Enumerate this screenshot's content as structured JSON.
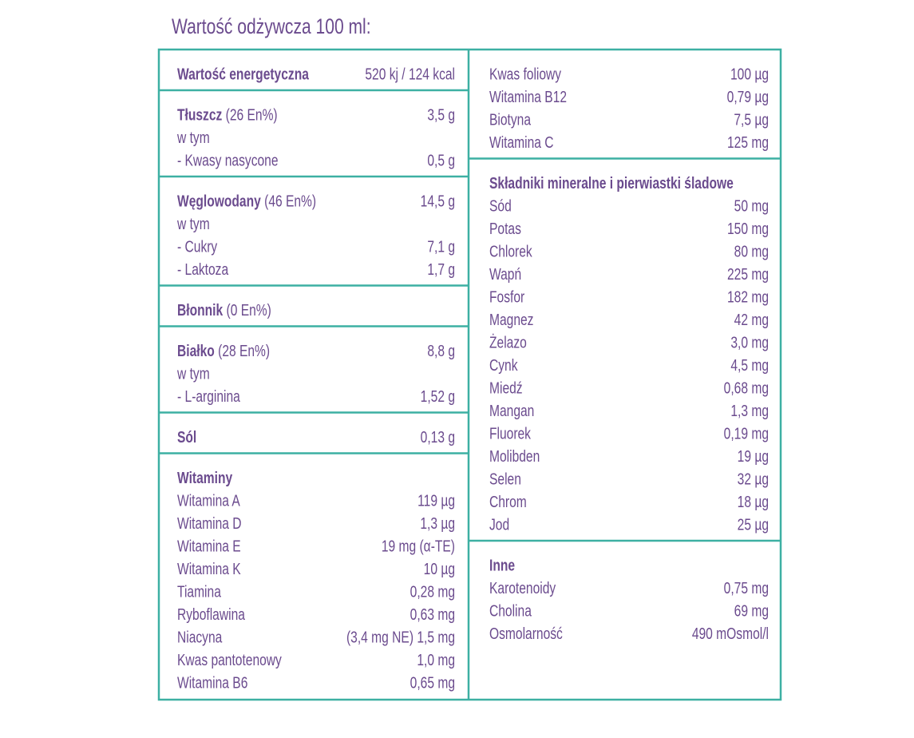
{
  "title": "Wartość odżywcza 100 ml:",
  "left_sections": [
    {
      "rows": [
        {
          "heading": "Wartość energetyczna",
          "value": "520 kj / 124 kcal"
        }
      ]
    },
    {
      "rows": [
        {
          "heading": "Tłuszcz",
          "note": "(26 En%)",
          "value": "3,5 g"
        },
        {
          "label": "w tym"
        },
        {
          "label": "- Kwasy nasycone",
          "value": "0,5 g"
        }
      ]
    },
    {
      "rows": [
        {
          "heading": "Węglowodany",
          "note": "(46 En%)",
          "value": "14,5 g"
        },
        {
          "label": "w tym"
        },
        {
          "label": "- Cukry",
          "value": "7,1 g"
        },
        {
          "label": "- Laktoza",
          "value": "1,7 g"
        }
      ]
    },
    {
      "rows": [
        {
          "heading": "Błonnik",
          "note": "(0 En%)"
        }
      ]
    },
    {
      "rows": [
        {
          "heading": "Białko",
          "note": "(28 En%)",
          "value": "8,8 g"
        },
        {
          "label": "w tym"
        },
        {
          "label": "- L-arginina",
          "value": "1,52 g"
        }
      ]
    },
    {
      "rows": [
        {
          "heading": "Sól",
          "value": "0,13 g"
        }
      ]
    },
    {
      "rows": [
        {
          "heading": "Witaminy"
        },
        {
          "label": "Witamina A",
          "value": "119 µg"
        },
        {
          "label": "Witamina D",
          "value": "1,3 µg"
        },
        {
          "label": "Witamina E",
          "value": "19 mg (α-TE)"
        },
        {
          "label": "Witamina K",
          "value": "10 µg"
        },
        {
          "label": "Tiamina",
          "value": "0,28 mg"
        },
        {
          "label": "Ryboflawina",
          "value": "0,63 mg"
        },
        {
          "label": "Niacyna",
          "value": "(3,4 mg NE) 1,5 mg"
        },
        {
          "label": "Kwas pantotenowy",
          "value": "1,0 mg"
        },
        {
          "label": "Witamina B6",
          "value": "0,65 mg"
        }
      ]
    }
  ],
  "right_sections": [
    {
      "rows": [
        {
          "label": "Kwas foliowy",
          "value": "100 µg"
        },
        {
          "label": "Witamina B12",
          "value": "0,79 µg"
        },
        {
          "label": "Biotyna",
          "value": "7,5 µg"
        },
        {
          "label": "Witamina C",
          "value": "125 mg"
        }
      ]
    },
    {
      "rows": [
        {
          "heading": "Składniki mineralne i pierwiastki śladowe"
        },
        {
          "label": "Sód",
          "value": "50 mg"
        },
        {
          "label": "Potas",
          "value": "150 mg"
        },
        {
          "label": "Chlorek",
          "value": "80 mg"
        },
        {
          "label": "Wapń",
          "value": "225 mg"
        },
        {
          "label": "Fosfor",
          "value": "182 mg"
        },
        {
          "label": "Magnez",
          "value": "42 mg"
        },
        {
          "label": "Żelazo",
          "value": "3,0 mg"
        },
        {
          "label": "Cynk",
          "value": "4,5 mg"
        },
        {
          "label": "Miedź",
          "value": "0,68 mg"
        },
        {
          "label": "Mangan",
          "value": "1,3 mg"
        },
        {
          "label": "Fluorek",
          "value": "0,19 mg"
        },
        {
          "label": "Molibden",
          "value": "19 µg"
        },
        {
          "label": "Selen",
          "value": "32 µg"
        },
        {
          "label": "Chrom",
          "value": "18 µg"
        },
        {
          "label": "Jod",
          "value": "25 µg"
        }
      ]
    },
    {
      "rows": [
        {
          "heading": "Inne"
        },
        {
          "label": "Karotenoidy",
          "value": "0,75 mg"
        },
        {
          "label": "Cholina",
          "value": "69 mg"
        },
        {
          "label": "Osmolarność",
          "value": "490 mOsmol/l"
        }
      ]
    }
  ]
}
